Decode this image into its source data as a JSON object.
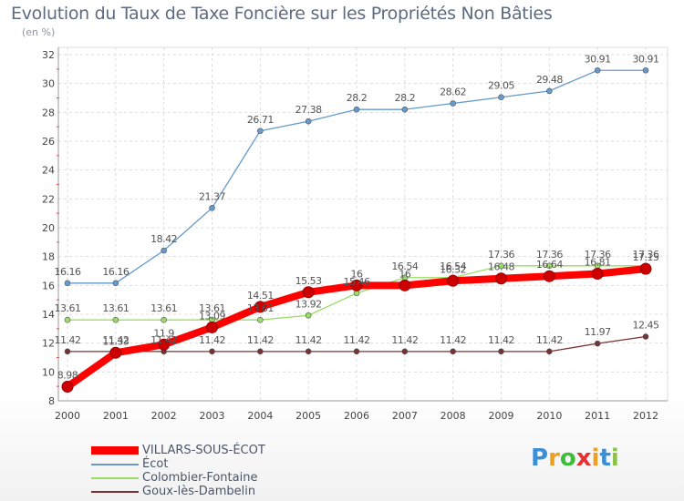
{
  "chart_data": {
    "type": "line",
    "title": "Evolution du Taux de Taxe Foncière sur les Propriétés Non Bâties",
    "subtitle": "(en %)",
    "x": [
      "2000",
      "2001",
      "2002",
      "2003",
      "2004",
      "2005",
      "2006",
      "2007",
      "2008",
      "2009",
      "2010",
      "2011",
      "2012"
    ],
    "ylim": [
      8,
      32
    ],
    "yticks": [
      8,
      10,
      12,
      14,
      16,
      18,
      20,
      22,
      24,
      26,
      28,
      30,
      32
    ],
    "grid": true,
    "legend_position": "bottom-left",
    "series": [
      {
        "name": "VILLARS-SOUS-ÉCOT",
        "color": "#ff0000",
        "values": [
          8.98,
          11.33,
          11.9,
          13.09,
          14.51,
          15.53,
          16,
          16,
          16.32,
          16.48,
          16.64,
          16.81,
          17.15
        ],
        "labels": [
          "8.98",
          "11.33",
          "11.9",
          "13.09",
          "14.51",
          "15.53",
          "16",
          "16",
          "16.32",
          "16.48",
          "16.64",
          "16.81",
          "17.15"
        ]
      },
      {
        "name": "Écot",
        "color": "#6699cc",
        "values": [
          16.16,
          16.16,
          18.42,
          21.37,
          26.71,
          27.38,
          28.2,
          28.2,
          28.62,
          29.05,
          29.48,
          30.91,
          30.91
        ],
        "labels": [
          "16.16",
          "16.16",
          "18.42",
          "21.37",
          "26.71",
          "27.38",
          "28.2",
          "28.2",
          "28.62",
          "29.05",
          "29.48",
          "30.91",
          "30.91"
        ]
      },
      {
        "name": "Colombier-Fontaine",
        "color": "#99dd66",
        "values": [
          13.61,
          13.61,
          13.61,
          13.61,
          13.61,
          13.92,
          15.46,
          16.54,
          16.54,
          17.36,
          17.36,
          17.36,
          17.36
        ],
        "labels": [
          "13.61",
          "13.61",
          "13.61",
          "13.61",
          "13.61",
          "13.92",
          "15.46",
          "16.54",
          "16.54",
          "17.36",
          "17.36",
          "17.36",
          "17.36"
        ]
      },
      {
        "name": "Goux-lès-Dambelin",
        "color": "#773333",
        "values": [
          11.42,
          11.42,
          11.42,
          11.42,
          11.42,
          11.42,
          11.42,
          11.42,
          11.42,
          11.42,
          11.42,
          11.97,
          12.45
        ],
        "labels": [
          "11.42",
          "11.42",
          "11.42",
          "11.42",
          "11.42",
          "11.42",
          "11.42",
          "11.42",
          "11.42",
          "11.42",
          "11.42",
          "11.97",
          "12.45"
        ]
      }
    ]
  },
  "logo": {
    "letters": [
      "P",
      "r",
      "o",
      "x",
      "i",
      "t",
      "i"
    ],
    "colors": [
      "#3b8fd8",
      "#f0a020",
      "#3bbf3b",
      "#e83030",
      "#f0a020",
      "#3b8fd8",
      "#8bc34a"
    ]
  }
}
